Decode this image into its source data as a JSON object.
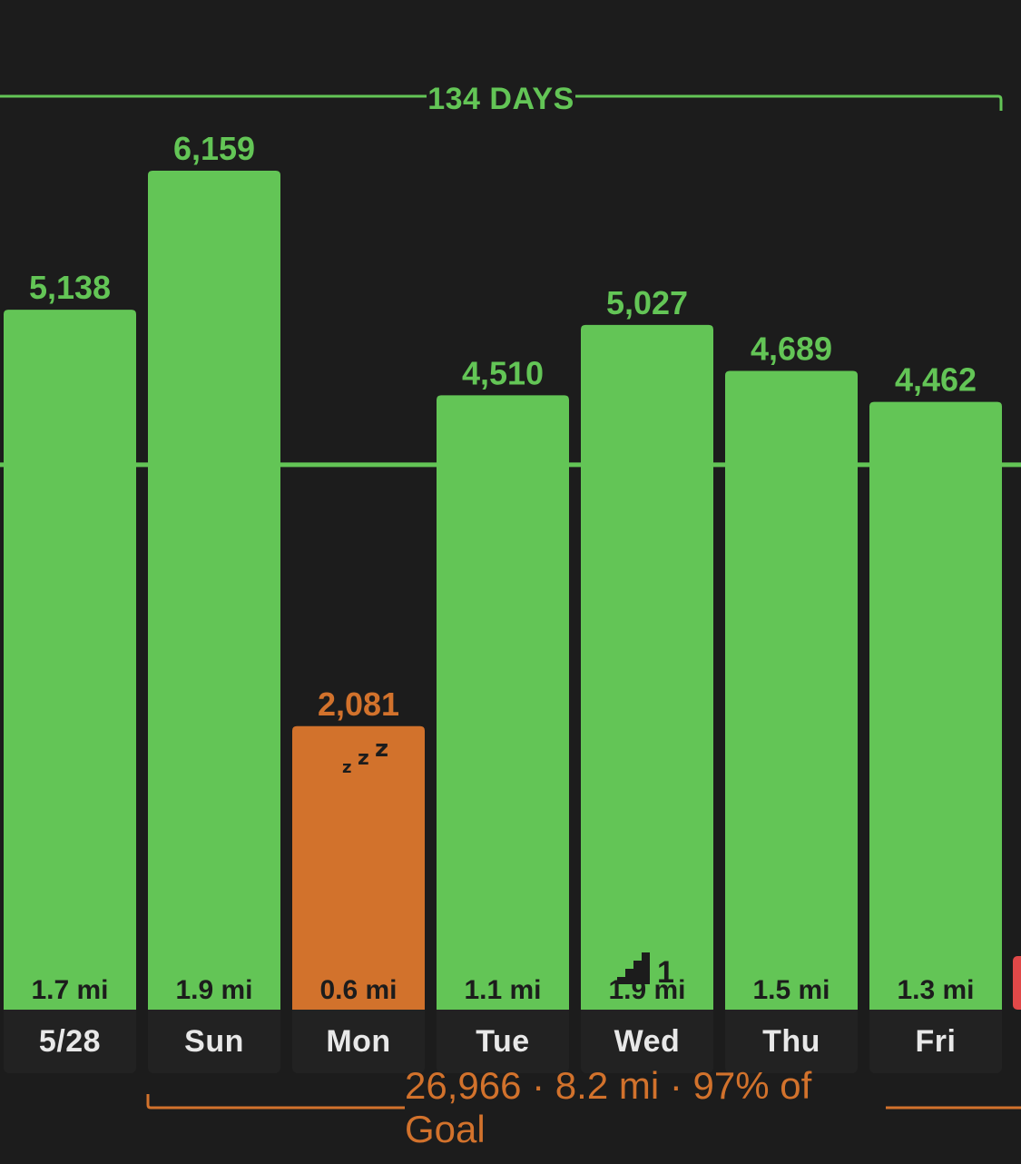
{
  "streak": {
    "label": "134 DAYS"
  },
  "summary": {
    "text": "26,966 · 8.2 mi · 97% of Goal"
  },
  "colors": {
    "goal_met": "#63c556",
    "goal_missed": "#d2722c",
    "partial_next": "#e04848",
    "background": "#1c1c1c"
  },
  "chart_data": {
    "type": "bar",
    "categories": [
      "5/28",
      "Sun",
      "Mon",
      "Tue",
      "Wed",
      "Thu",
      "Fri"
    ],
    "series": [
      {
        "values": [
          5138,
          6159,
          2081,
          4510,
          5027,
          4689,
          4462
        ]
      }
    ],
    "value_labels": [
      "5,138",
      "6,159",
      "2,081",
      "4,510",
      "5,027",
      "4,689",
      "4,462"
    ],
    "distance_labels": [
      "1.7 mi",
      "1.9 mi",
      "0.6 mi",
      "1.1 mi",
      "1.9 mi",
      "1.5 mi",
      "1.3 mi"
    ],
    "goal_met": [
      true,
      true,
      false,
      true,
      true,
      true,
      true
    ],
    "goal": 4000,
    "ylim": [
      0,
      6500
    ],
    "annotations": [
      {
        "category": "Mon",
        "icon": "sleep-zzz-icon"
      },
      {
        "category": "Wed",
        "icon": "stairs-icon",
        "text": "1"
      }
    ]
  }
}
